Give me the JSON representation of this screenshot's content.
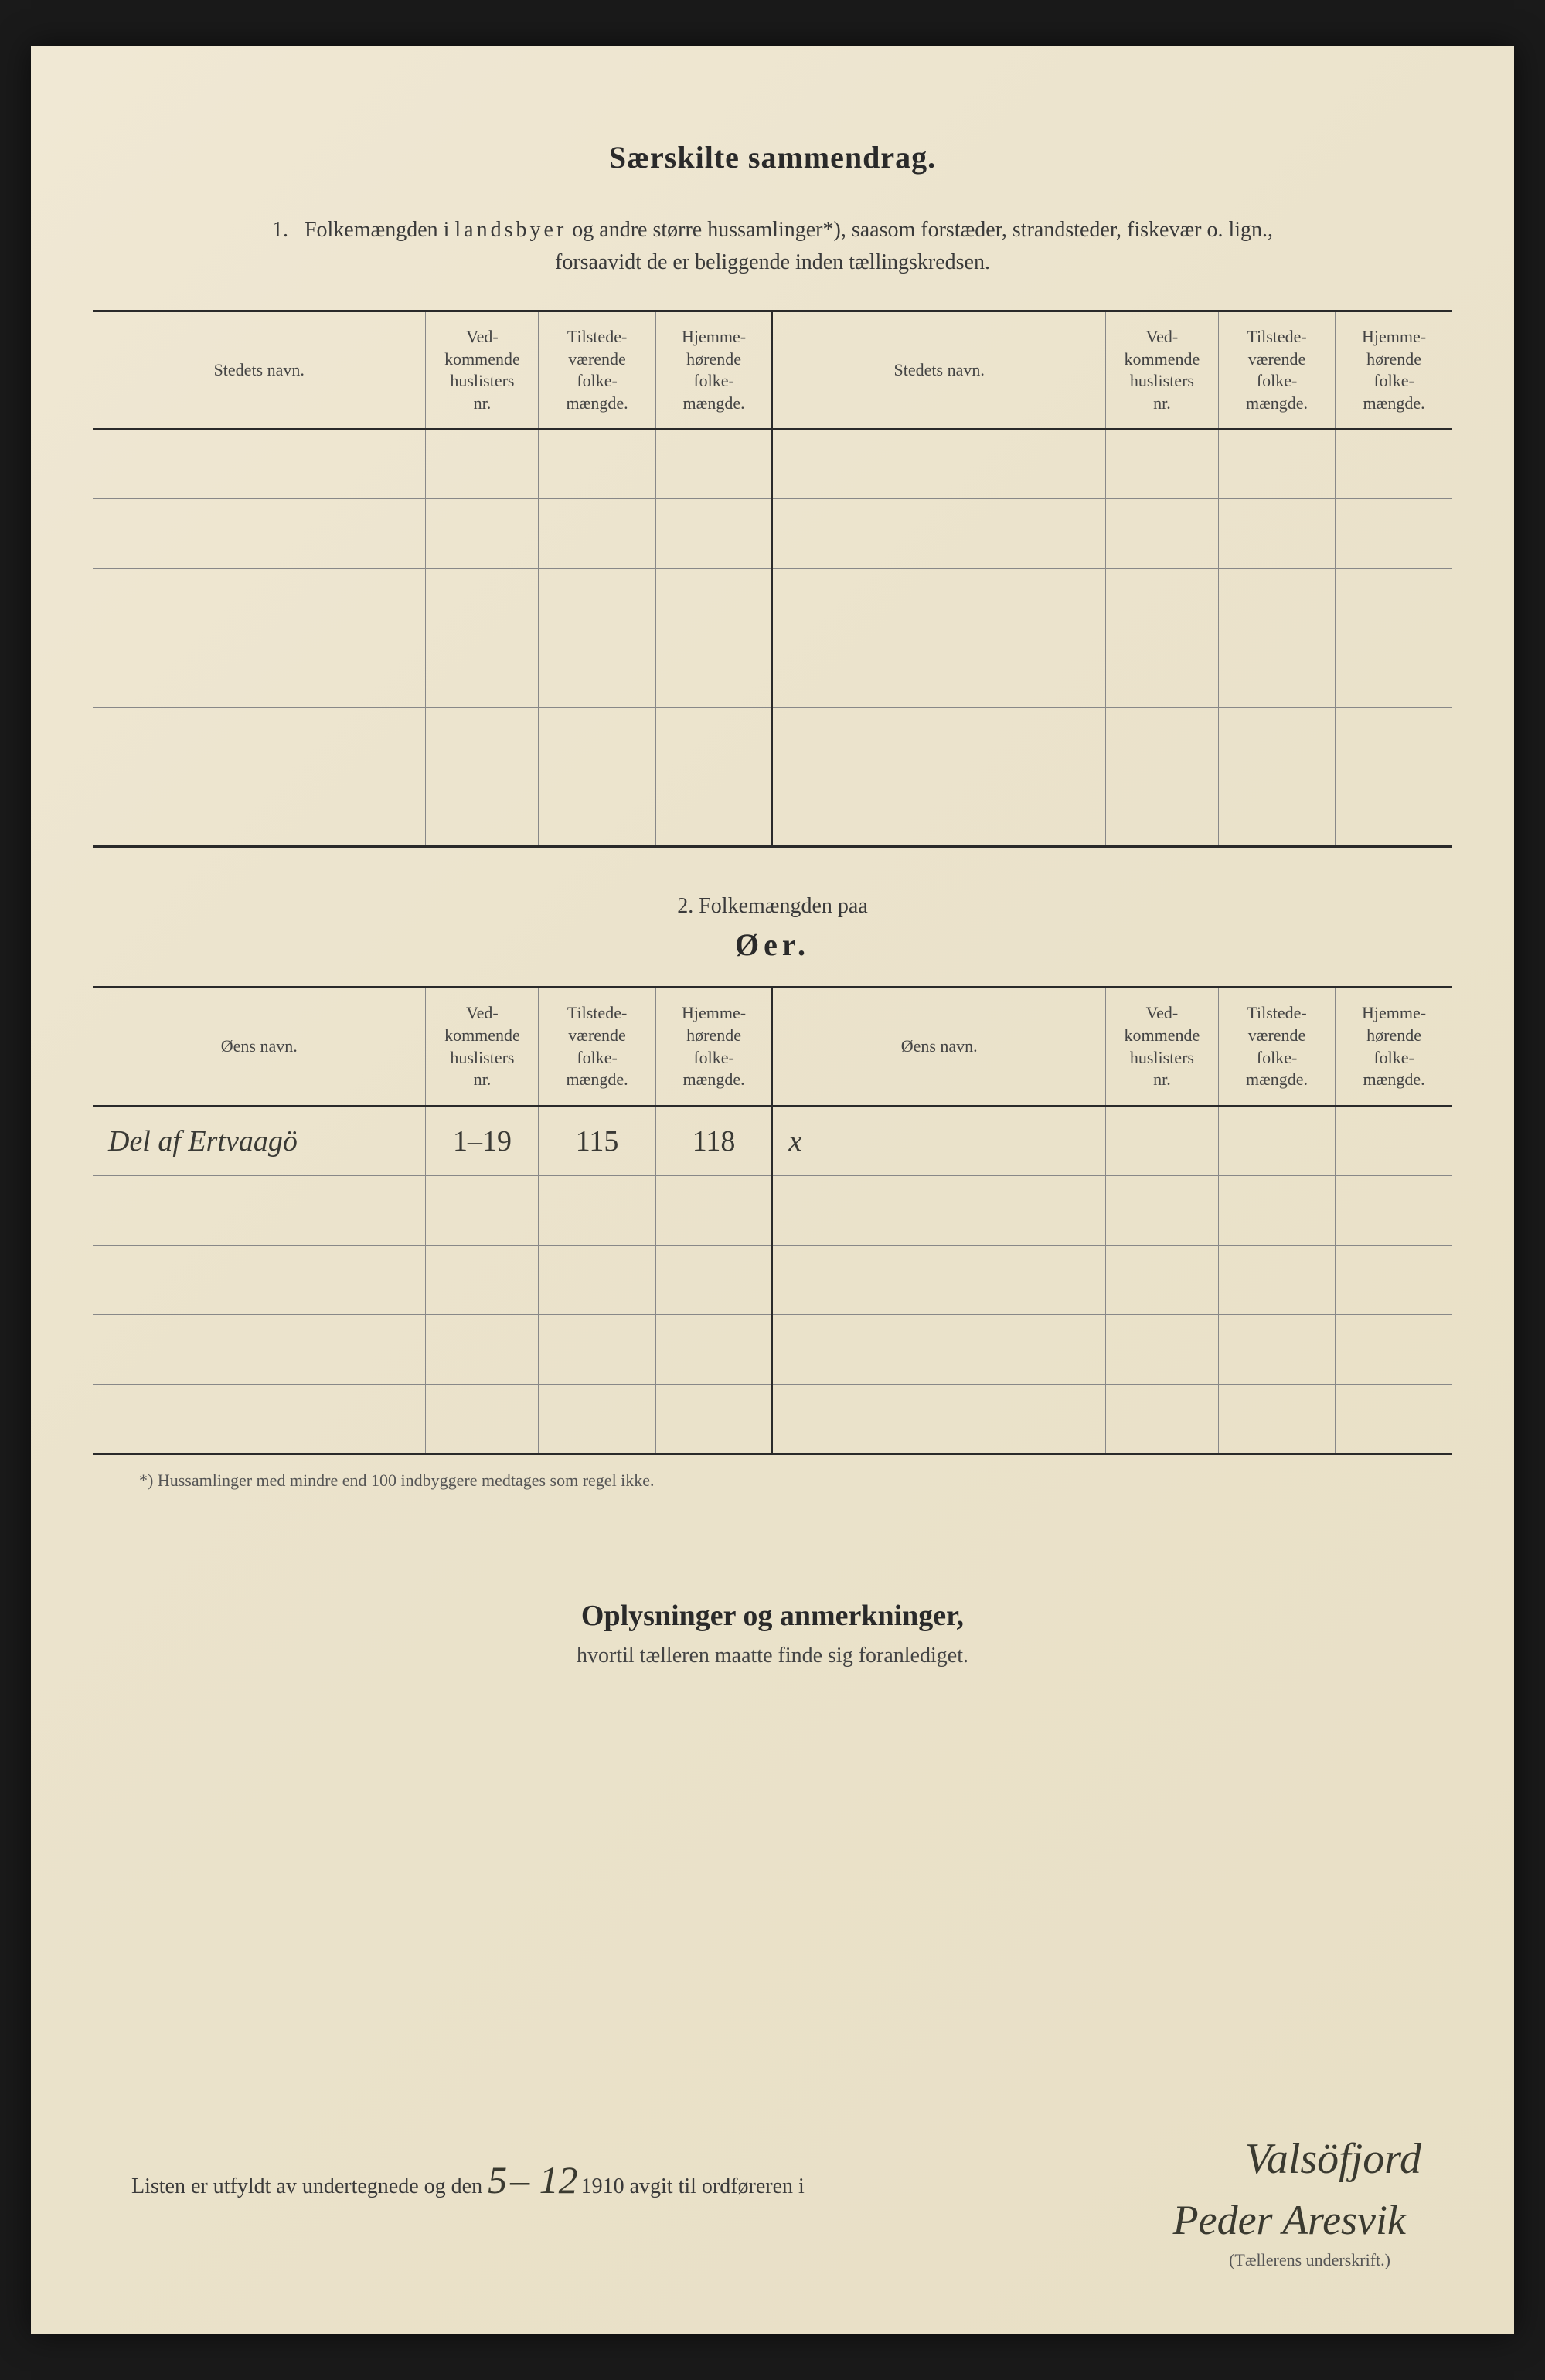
{
  "title": "Særskilte sammendrag.",
  "section1": {
    "number": "1.",
    "intro_a": "Folkemængden i ",
    "intro_spaced": "landsbyer",
    "intro_b": " og andre større hussamlinger*), saasom forstæder, strandsteder, fiskevær o. lign.,",
    "intro_c": "forsaavidt de er beliggende inden tællingskredsen.",
    "headers": {
      "name": "Stedets navn.",
      "huslisters": "Ved-\nkommende\nhuslisters\nnr.",
      "tilstede": "Tilstede-\nværende\nfolke-\nmængde.",
      "hjemme": "Hjemme-\nhørende\nfolke-\nmængde."
    },
    "rows": [
      [
        "",
        "",
        "",
        "",
        "",
        "",
        "",
        ""
      ],
      [
        "",
        "",
        "",
        "",
        "",
        "",
        "",
        ""
      ],
      [
        "",
        "",
        "",
        "",
        "",
        "",
        "",
        ""
      ],
      [
        "",
        "",
        "",
        "",
        "",
        "",
        "",
        ""
      ],
      [
        "",
        "",
        "",
        "",
        "",
        "",
        "",
        ""
      ],
      [
        "",
        "",
        "",
        "",
        "",
        "",
        "",
        ""
      ]
    ]
  },
  "section2": {
    "title": "2.   Folkemængden paa",
    "subtitle": "Øer.",
    "headers": {
      "name": "Øens navn.",
      "huslisters": "Ved-\nkommende\nhuslisters\nnr.",
      "tilstede": "Tilstede-\nværende\nfolke-\nmængde.",
      "hjemme": "Hjemme-\nhørende\nfolke-\nmængde."
    },
    "rows": [
      [
        "Del af Ertvaagö",
        "1–19",
        "115",
        "118",
        "x",
        "",
        "",
        ""
      ],
      [
        "",
        "",
        "",
        "",
        "",
        "",
        "",
        ""
      ],
      [
        "",
        "",
        "",
        "",
        "",
        "",
        "",
        ""
      ],
      [
        "",
        "",
        "",
        "",
        "",
        "",
        "",
        ""
      ],
      [
        "",
        "",
        "",
        "",
        "",
        "",
        "",
        ""
      ]
    ]
  },
  "footnote": "*)   Hussamlinger med mindre end 100 indbyggere medtages som regel ikke.",
  "remarks": {
    "title": "Oplysninger og anmerkninger,",
    "sub": "hvortil tælleren maatte finde sig foranlediget."
  },
  "signature": {
    "line_a": "Listen er utfyldt av undertegnede og den ",
    "day": "5",
    "sep": " – ",
    "month": "12",
    "line_b": "   1910 avgit til ordføreren i ",
    "place": "Valsöfjord",
    "signer": "Peder Aresvik",
    "caption": "(Tællerens underskrift.)"
  },
  "layout": {
    "col_widths_pct": [
      24.5,
      8.3,
      8.6,
      8.6,
      24.5,
      8.3,
      8.6,
      8.6
    ]
  }
}
